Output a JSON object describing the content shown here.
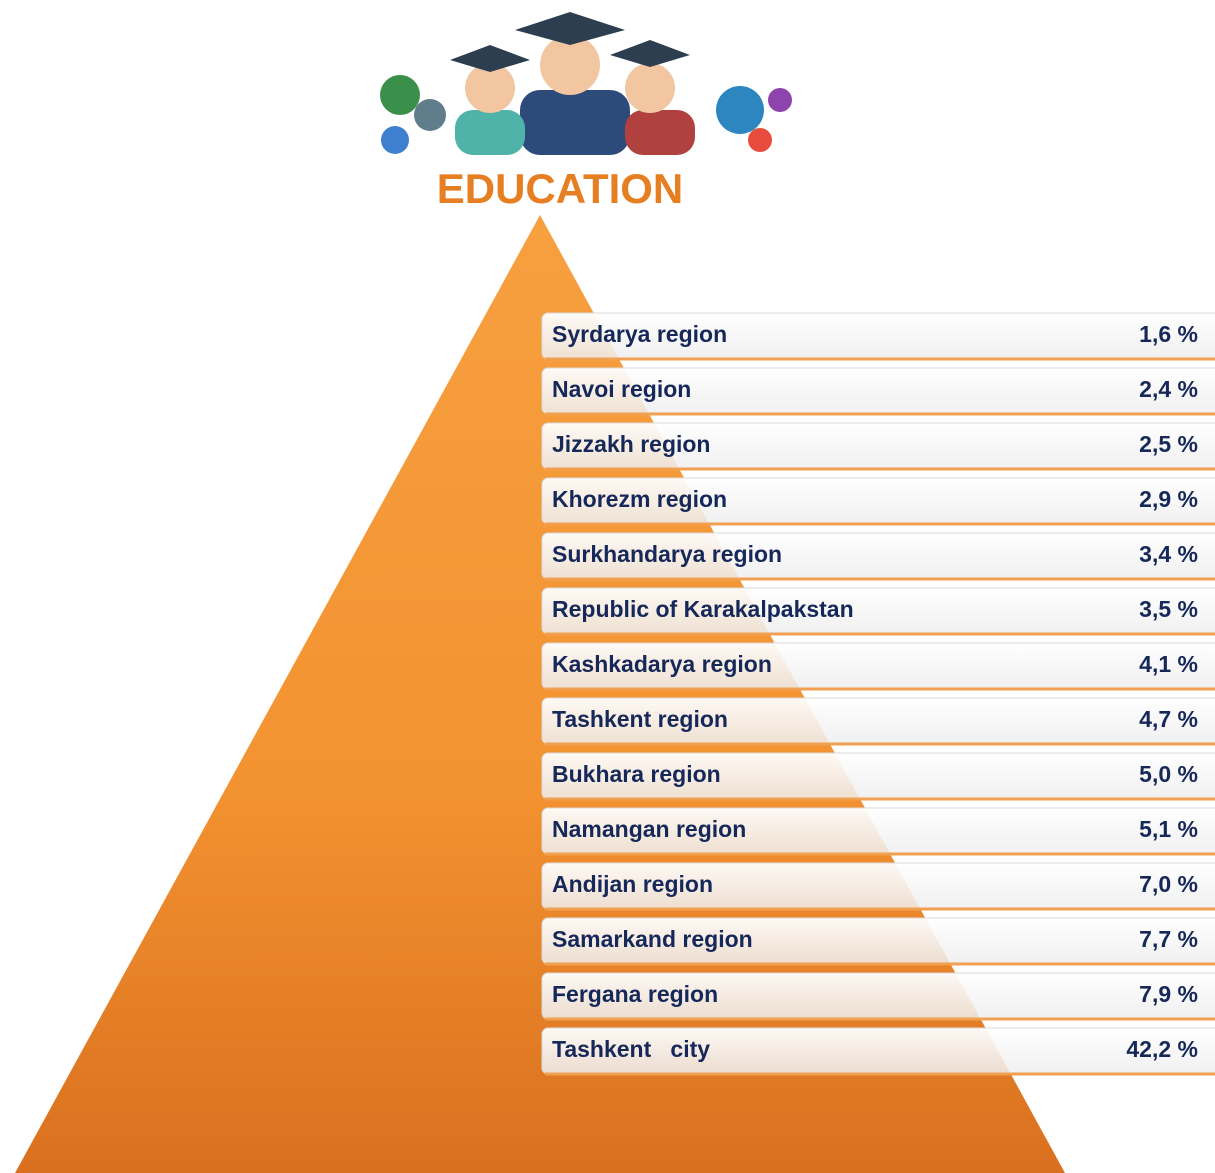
{
  "title": "EDUCATION",
  "rows": [
    {
      "label": "Syrdarya region",
      "value": "1,6 %"
    },
    {
      "label": "Navoi region",
      "value": "2,4 %"
    },
    {
      "label": "Jizzakh region",
      "value": "2,5 %"
    },
    {
      "label": "Khorezm region",
      "value": "2,9 %"
    },
    {
      "label": "Surkhandarya region",
      "value": "3,4 %"
    },
    {
      "label": "Republic of Karakalpakstan",
      "value": "3,5 %"
    },
    {
      "label": "Kashkadarya region",
      "value": "4,1 %"
    },
    {
      "label": "Tashkent region",
      "value": "4,7 %"
    },
    {
      "label": "Bukhara region",
      "value": "5,0 %"
    },
    {
      "label": "Namangan region",
      "value": "5,1 %"
    },
    {
      "label": "Andijan region",
      "value": "7,0 %"
    },
    {
      "label": "Samarkand region",
      "value": "7,7 %"
    },
    {
      "label": "Fergana region",
      "value": "7,9 %"
    },
    {
      "label": "Tashkent   city",
      "value": "42,2 %"
    }
  ]
}
